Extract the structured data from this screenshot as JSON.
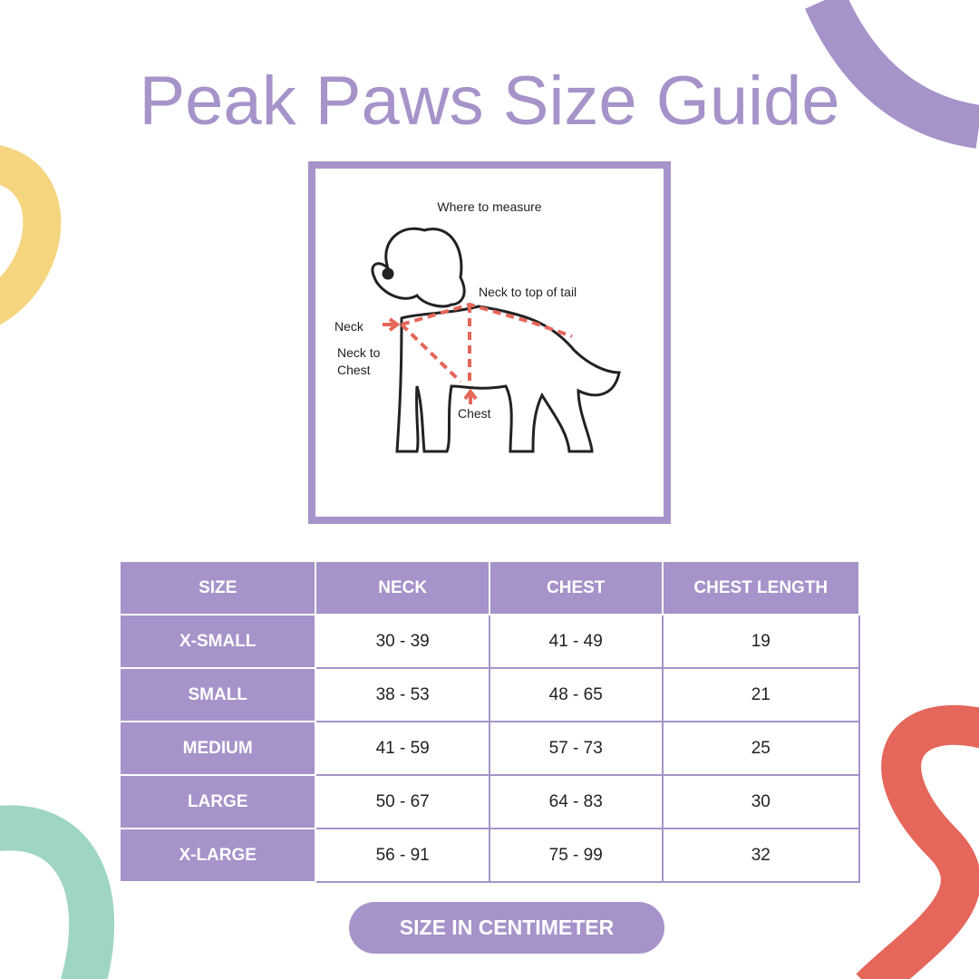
{
  "title": "Peak Paws Size Guide",
  "diagram": {
    "title": "Where to measure",
    "labels": {
      "neck": "Neck",
      "neck_to_chest": "Neck to Chest",
      "neck_to_tail": "Neck to top of tail",
      "chest": "Chest"
    }
  },
  "table": {
    "header": [
      "SIZE",
      "NECK",
      "CHEST",
      "CHEST LENGTH"
    ],
    "rows": [
      [
        "X-SMALL",
        "30 - 39",
        "41 - 49",
        "19"
      ],
      [
        "SMALL",
        "38 - 53",
        "48 - 65",
        "21"
      ],
      [
        "MEDIUM",
        "41 - 59",
        "57 - 73",
        "25"
      ],
      [
        "LARGE",
        "50 - 67",
        "64 - 83",
        "30"
      ],
      [
        "X-LARGE",
        "56 - 91",
        "75 - 99",
        "32"
      ]
    ]
  },
  "footer": "SIZE IN CENTIMETER"
}
